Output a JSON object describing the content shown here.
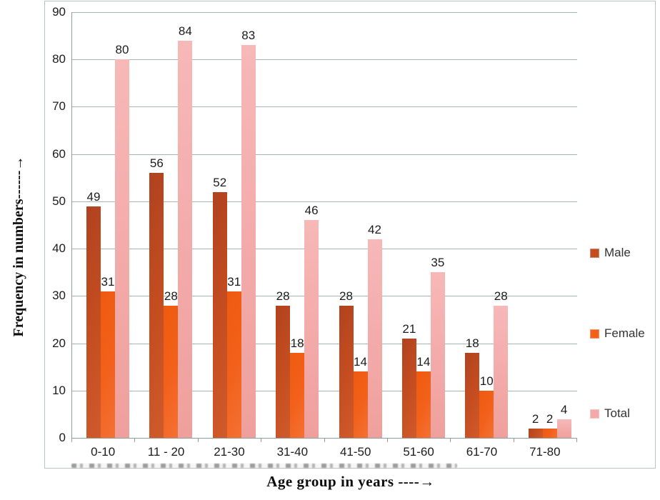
{
  "chart_data": {
    "type": "bar",
    "title": "",
    "xlabel": "Age group in years  ----→",
    "ylabel": "Frequency in numbers------→",
    "categories": [
      "0-10",
      "11 - 20",
      "21-30",
      "31-40",
      "41-50",
      "51-60",
      "61-70",
      "71-80"
    ],
    "series": [
      {
        "name": "Male",
        "values": [
          49,
          56,
          52,
          28,
          28,
          21,
          18,
          2
        ],
        "color": "#c44d20",
        "color_dark": "#b0421f",
        "color_light": "#cf5a2a"
      },
      {
        "name": "Female",
        "values": [
          31,
          28,
          31,
          18,
          14,
          14,
          10,
          2
        ],
        "color": "#f2601a",
        "color_dark": "#ee5a0f",
        "color_light": "#f47134"
      },
      {
        "name": "Total",
        "values": [
          80,
          84,
          83,
          46,
          42,
          35,
          28,
          4
        ],
        "color": "#f2a9a7",
        "color_dark": "#efa09c",
        "color_light": "#f7b8b8"
      }
    ],
    "ylim": [
      0,
      90
    ],
    "ytick_step": 10,
    "grid": true,
    "legend_position": "right",
    "value_labels": true
  },
  "style": {
    "grid_color": "#a3b6b2",
    "axis_color": "#8aa09c",
    "frame_color": "#b7c5c5",
    "label_color": "#1c1c1c",
    "legend_text_color": "#333333"
  }
}
